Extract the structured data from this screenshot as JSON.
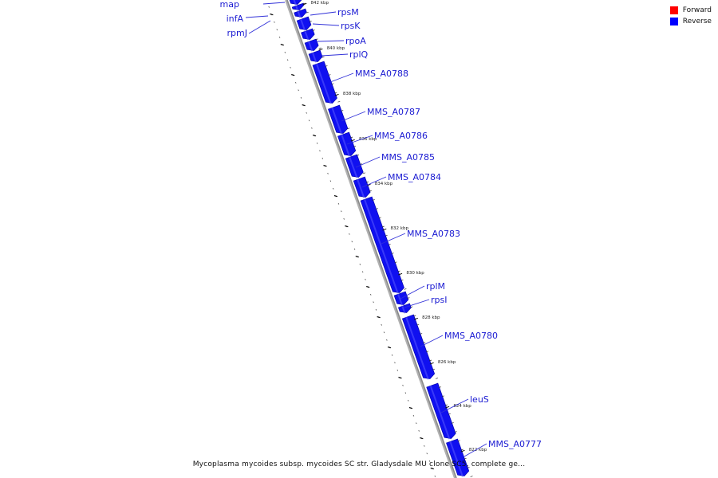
{
  "title": "Mycoplasma mycoides subsp. mycoides SC str. Gladysdale MU clone SC5, complete ge...",
  "legend": {
    "items": [
      {
        "label": "Forward",
        "color": "#ff0000"
      },
      {
        "label": "Reverse",
        "color": "#0000ff"
      }
    ]
  },
  "colors": {
    "gene_fill": "#1010f0",
    "gene_stroke": "#0000a8",
    "label": "#1a1ad2",
    "backbone": "#8a8a8a"
  },
  "scale": {
    "unit": "kbp",
    "tick_labels": [
      "842 kbp",
      "840 kbp",
      "838 kbp",
      "836 kbp",
      "834 kbp",
      "832 kbp",
      "830 kbp",
      "828 kbp",
      "826 kbp",
      "824 kbp",
      "822 kbp"
    ]
  },
  "genes": [
    {
      "name": "map",
      "strand": "reverse"
    },
    {
      "name": "infA",
      "strand": "reverse"
    },
    {
      "name": "rpmJ",
      "strand": "reverse"
    },
    {
      "name": "rpsM",
      "strand": "reverse"
    },
    {
      "name": "rpsK",
      "strand": "reverse"
    },
    {
      "name": "rpoA",
      "strand": "reverse"
    },
    {
      "name": "rplQ",
      "strand": "reverse"
    },
    {
      "name": "MMS_A0788",
      "strand": "reverse"
    },
    {
      "name": "MMS_A0787",
      "strand": "reverse"
    },
    {
      "name": "MMS_A0786",
      "strand": "reverse"
    },
    {
      "name": "MMS_A0785",
      "strand": "reverse"
    },
    {
      "name": "MMS_A0784",
      "strand": "reverse"
    },
    {
      "name": "MMS_A0783",
      "strand": "reverse"
    },
    {
      "name": "rplM",
      "strand": "reverse"
    },
    {
      "name": "rpsI",
      "strand": "reverse"
    },
    {
      "name": "MMS_A0780",
      "strand": "reverse"
    },
    {
      "name": "leuS",
      "strand": "reverse"
    },
    {
      "name": "MMS_A0777",
      "strand": "reverse"
    }
  ]
}
